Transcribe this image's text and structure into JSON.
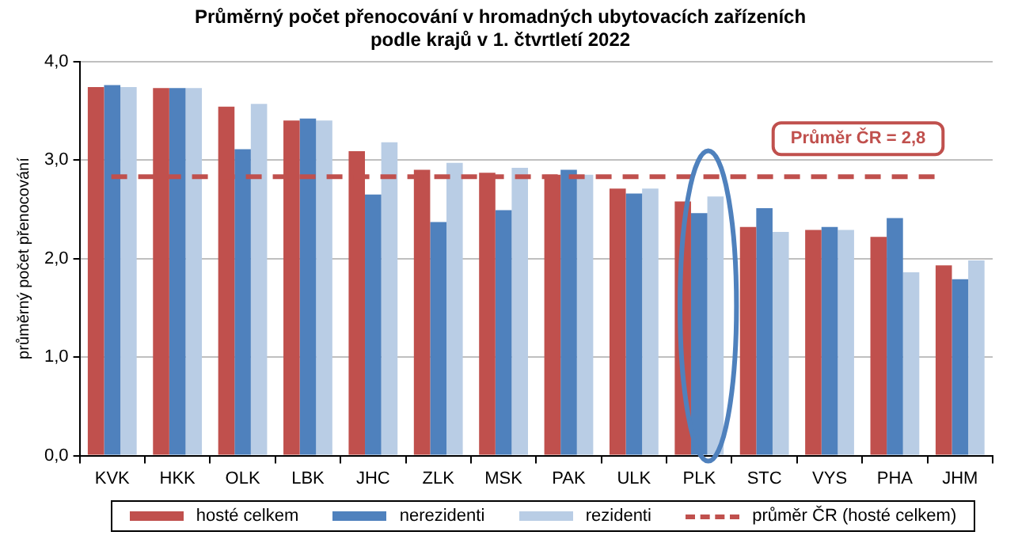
{
  "chart_data": {
    "type": "bar",
    "title": "Průměrný počet přenocování v hromadných ubytovacích zařízeních\npodle krajů v 1. čtvrtletí 2022",
    "ylabel": "průměrný počet přenocování",
    "categories": [
      "KVK",
      "HKK",
      "OLK",
      "LBK",
      "JHC",
      "ZLK",
      "MSK",
      "PAK",
      "ULK",
      "PLK",
      "STC",
      "VYS",
      "PHA",
      "JHM"
    ],
    "series": [
      {
        "name": "hosté celkem",
        "color": "#c0504d",
        "values": [
          3.74,
          3.73,
          3.54,
          3.4,
          3.09,
          2.9,
          2.87,
          2.85,
          2.71,
          2.58,
          2.32,
          2.29,
          2.22,
          1.93
        ]
      },
      {
        "name": "nerezidenti",
        "color": "#4f81bd",
        "values": [
          3.76,
          3.73,
          3.11,
          3.42,
          2.65,
          2.37,
          2.49,
          2.9,
          2.66,
          2.46,
          2.51,
          2.32,
          2.41,
          1.79
        ]
      },
      {
        "name": "rezidenti",
        "color": "#b9cde5",
        "values": [
          3.74,
          3.73,
          3.57,
          3.4,
          3.18,
          2.97,
          2.92,
          2.85,
          2.71,
          2.63,
          2.27,
          2.29,
          1.86,
          1.98
        ]
      }
    ],
    "ylim": [
      0,
      4
    ],
    "yticks": [
      {
        "value": 0,
        "label": "0,0"
      },
      {
        "value": 1,
        "label": "1,0"
      },
      {
        "value": 2,
        "label": "2,0"
      },
      {
        "value": 3,
        "label": "3,0"
      },
      {
        "value": 4,
        "label": "4,0"
      }
    ],
    "grid": "y",
    "legend": "bottom",
    "ref_lines": [
      {
        "axis": "y",
        "value": 2.83,
        "label": "průměr ČR (hosté celkem)",
        "color": "#c0504d",
        "line_style": "dashed"
      }
    ],
    "annotations": [
      "Průměr ČR = 2,8"
    ]
  }
}
